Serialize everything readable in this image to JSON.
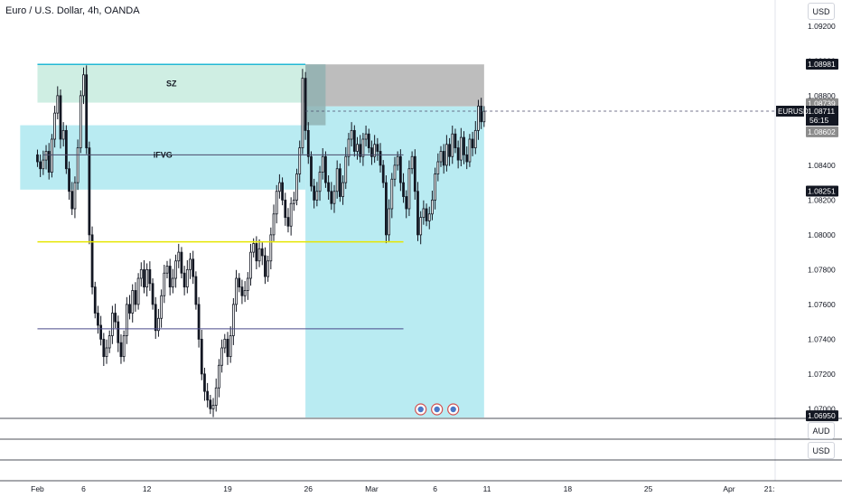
{
  "header": {
    "title": "Euro / U.S. Dollar, 4h, OANDA"
  },
  "currency_buttons": {
    "top": "USD",
    "pane_aud": "AUD",
    "pane_usd": "USD"
  },
  "symbol_tag": "EURUSD",
  "price_tags": {
    "upper_level": "1.08981",
    "zone_top": "1.08739",
    "last": "1.08711",
    "countdown": "56:15",
    "zone_bottom": "1.08602",
    "mid_level": "1.08251",
    "low_level": "1.06950"
  },
  "annotations": {
    "sz": "SZ",
    "ifvg": "iFVG"
  },
  "colors": {
    "up": "#131722",
    "down": "#131722",
    "supply_zone": "#cfeee3",
    "ifvg_zone": "#b9ebf2",
    "target_zone": "#b9ebf2",
    "stop_zone": "#bdbdbd",
    "yellow_line": "#e6e600",
    "blue_line": "#4a4a8a"
  },
  "chart_data": {
    "type": "candlestick",
    "title": "Euro / U.S. Dollar, 4h, OANDA",
    "y_ticks": [
      "1.09200",
      "1.09000",
      "1.08800",
      "1.08600",
      "1.08400",
      "1.08200",
      "1.08000",
      "1.07800",
      "1.07600",
      "1.07400",
      "1.07200",
      "1.07000"
    ],
    "y_tick_values": [
      1.092,
      1.09,
      1.088,
      1.086,
      1.084,
      1.082,
      1.08,
      1.078,
      1.076,
      1.074,
      1.072,
      1.07
    ],
    "ylim": [
      1.0695,
      1.0935
    ],
    "x_ticks": [
      "Feb",
      "6",
      "12",
      "19",
      "26",
      "Mar",
      "6",
      "11",
      "18",
      "25",
      "Apr",
      "21:"
    ],
    "x_tick_index": [
      0,
      16,
      38,
      66,
      94,
      116,
      138,
      156,
      184,
      212,
      240,
      254
    ],
    "x_range": [
      -13,
      256
    ],
    "close_path": [
      1.0842,
      1.0838,
      1.0843,
      1.0848,
      1.0836,
      1.0855,
      1.087,
      1.088,
      1.0855,
      1.086,
      1.0838,
      1.0825,
      1.0815,
      1.083,
      1.085,
      1.088,
      1.0892,
      1.085,
      1.08,
      1.077,
      1.0755,
      1.0748,
      1.074,
      1.073,
      1.0735,
      1.0742,
      1.0755,
      1.075,
      1.0738,
      1.073,
      1.0742,
      1.076,
      1.0755,
      1.0768,
      1.076,
      1.0775,
      1.078,
      1.077,
      1.078,
      1.0772,
      1.076,
      1.0745,
      1.0752,
      1.0765,
      1.0778,
      1.0782,
      1.077,
      1.0775,
      1.0785,
      1.079,
      1.0778,
      1.077,
      1.078,
      1.0786,
      1.0776,
      1.076,
      1.074,
      1.072,
      1.071,
      1.0705,
      1.07,
      1.0702,
      1.0712,
      1.0725,
      1.0735,
      1.074,
      1.073,
      1.0742,
      1.076,
      1.0775,
      1.077,
      1.0765,
      1.0768,
      1.0775,
      1.079,
      1.0795,
      1.0785,
      1.0792,
      1.0788,
      1.0776,
      1.0785,
      1.08,
      1.0812,
      1.0825,
      1.083,
      1.082,
      1.081,
      1.0805,
      1.0818,
      1.082,
      1.0835,
      1.085,
      1.089,
      1.086,
      1.0845,
      1.0828,
      1.082,
      1.0825,
      1.0836,
      1.0845,
      1.083,
      1.0825,
      1.0818,
      1.0825,
      1.0838,
      1.0822,
      1.083,
      1.0845,
      1.0855,
      1.086,
      1.0848,
      1.0852,
      1.0845,
      1.0855,
      1.0858,
      1.085,
      1.0845,
      1.0852,
      1.0848,
      1.084,
      1.083,
      1.08,
      1.0815,
      1.0832,
      1.084,
      1.0845,
      1.083,
      1.0822,
      1.0815,
      1.0838,
      1.0845,
      1.0825,
      1.08,
      1.081,
      1.0815,
      1.0808,
      1.0812,
      1.082,
      1.0835,
      1.0842,
      1.0848,
      1.084,
      1.0852,
      1.0845,
      1.0858,
      1.085,
      1.0843,
      1.0856,
      1.0846,
      1.0842,
      1.0855,
      1.085,
      1.086,
      1.0874,
      1.0865,
      1.0871
    ],
    "zones": {
      "sz": {
        "top": 1.0898,
        "bottom": 1.0876,
        "from": 0,
        "to": 93
      },
      "ifvg": {
        "top": 1.0863,
        "bottom": 1.0826,
        "from": -6,
        "to": 93
      },
      "stop_box": {
        "top": 1.0898,
        "bottom": 1.08739,
        "from": 93,
        "to": 155
      },
      "target_box": {
        "top": 1.08739,
        "bottom": 1.0695,
        "from": 93,
        "to": 155
      }
    },
    "lines": {
      "ifvg_mid": 1.0846,
      "yellow": 1.0796,
      "lower": 1.0746
    }
  }
}
